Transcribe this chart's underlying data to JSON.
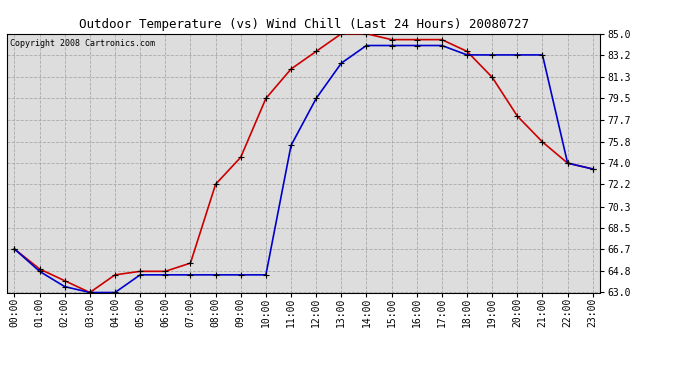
{
  "title": "Outdoor Temperature (vs) Wind Chill (Last 24 Hours) 20080727",
  "copyright": "Copyright 2008 Cartronics.com",
  "x_labels": [
    "00:00",
    "01:00",
    "02:00",
    "03:00",
    "04:00",
    "05:00",
    "06:00",
    "07:00",
    "08:00",
    "09:00",
    "10:00",
    "11:00",
    "12:00",
    "13:00",
    "14:00",
    "15:00",
    "16:00",
    "17:00",
    "18:00",
    "19:00",
    "20:00",
    "21:00",
    "22:00",
    "23:00"
  ],
  "temp_red": [
    66.7,
    65.0,
    64.0,
    63.0,
    64.5,
    64.8,
    64.8,
    65.5,
    72.2,
    74.5,
    79.5,
    82.0,
    83.5,
    85.0,
    85.0,
    84.5,
    84.5,
    84.5,
    83.5,
    81.3,
    78.0,
    75.8,
    74.0,
    73.5
  ],
  "wind_chill_blue": [
    66.7,
    64.8,
    63.5,
    63.0,
    63.0,
    64.5,
    64.5,
    64.5,
    64.5,
    64.5,
    64.5,
    75.5,
    79.5,
    82.5,
    84.0,
    84.0,
    84.0,
    84.0,
    83.2,
    83.2,
    83.2,
    83.2,
    74.0,
    73.5
  ],
  "ylim": [
    63.0,
    85.0
  ],
  "yticks": [
    63.0,
    64.8,
    66.7,
    68.5,
    70.3,
    72.2,
    74.0,
    75.8,
    77.7,
    79.5,
    81.3,
    83.2,
    85.0
  ],
  "bg_color": "#ffffff",
  "plot_bg_color": "#dddddd",
  "grid_color": "#aaaaaa",
  "red_color": "#cc0000",
  "blue_color": "#0000cc",
  "title_fontsize": 9,
  "tick_fontsize": 7,
  "copyright_fontsize": 6
}
